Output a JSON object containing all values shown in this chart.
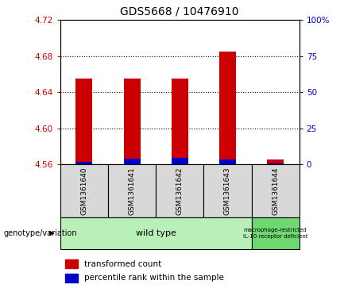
{
  "title": "GDS5668 / 10476910",
  "samples": [
    "GSM1361640",
    "GSM1361641",
    "GSM1361642",
    "GSM1361643",
    "GSM1361644"
  ],
  "red_values": [
    4.655,
    4.655,
    4.655,
    4.685,
    4.565
  ],
  "blue_values": [
    4.563,
    4.566,
    4.567,
    4.565,
    4.561
  ],
  "ylim_left": [
    4.56,
    4.72
  ],
  "ylim_right": [
    0,
    100
  ],
  "yticks_left": [
    4.56,
    4.6,
    4.64,
    4.68,
    4.72
  ],
  "yticks_right": [
    0,
    25,
    50,
    75,
    100
  ],
  "ytick_right_labels": [
    "0",
    "25",
    "50",
    "75",
    "100%"
  ],
  "grid_values": [
    4.6,
    4.64,
    4.68
  ],
  "bar_bottom": 4.56,
  "bar_width": 0.35,
  "red_color": "#cc0000",
  "blue_color": "#0000cc",
  "plot_bg": "#ffffff",
  "group1_label": "wild type",
  "group2_label": "macrophage-restricted\nIL-10 receptor deficient",
  "group1_indices": [
    0,
    1,
    2,
    3
  ],
  "group2_indices": [
    4
  ],
  "genotype_label": "genotype/variation",
  "legend1": "transformed count",
  "legend2": "percentile rank within the sample",
  "label_color_left": "#cc0000",
  "label_color_right": "#0000cc",
  "group1_bg": "#b8f0b8",
  "group2_bg": "#70d870",
  "sample_box_bg": "#d8d8d8",
  "title_fontsize": 10,
  "tick_fontsize": 7.5,
  "sample_fontsize": 6.5
}
